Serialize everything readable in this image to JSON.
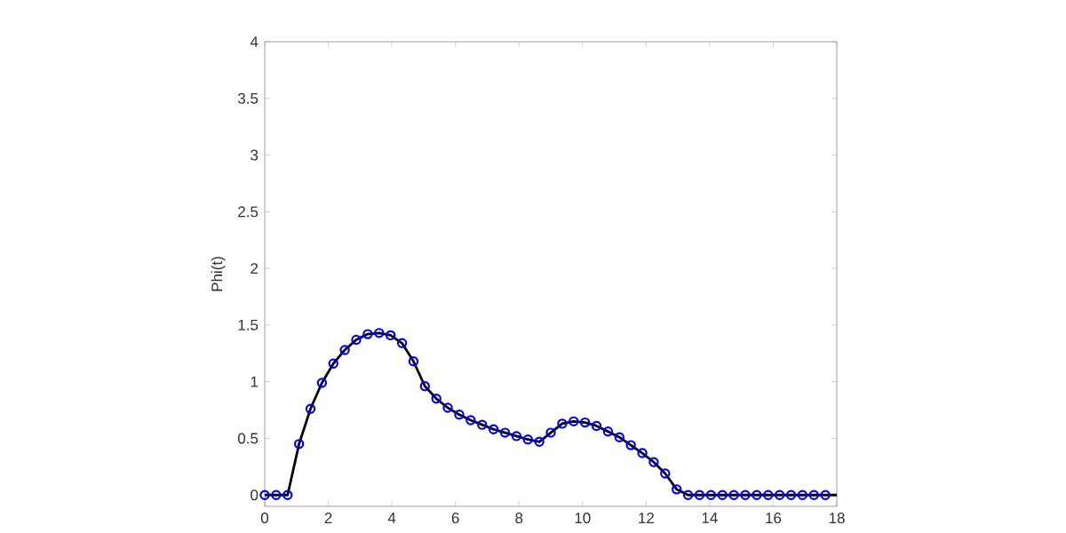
{
  "chart_data": {
    "type": "line",
    "ylabel": "Phi(t)",
    "xlim": [
      0,
      18
    ],
    "ylim": [
      -0.1,
      4
    ],
    "xticks": [
      0,
      2,
      4,
      6,
      8,
      10,
      12,
      14,
      16,
      18
    ],
    "yticks": [
      0,
      0.5,
      1,
      1.5,
      2,
      2.5,
      3,
      3.5,
      4
    ],
    "grid": false,
    "series": [
      {
        "color": "#000000",
        "marker": "none",
        "line_style": "solid",
        "x": [
          0,
          0.36,
          0.72,
          1.08,
          1.44,
          1.8,
          2.16,
          2.52,
          2.88,
          3.24,
          3.6,
          3.96,
          4.32,
          4.68,
          5.04,
          5.4,
          5.76,
          6.12,
          6.48,
          6.84,
          7.2,
          7.56,
          7.92,
          8.28,
          8.64,
          9.0,
          9.36,
          9.72,
          10.08,
          10.44,
          10.8,
          11.16,
          11.52,
          11.88,
          12.24,
          12.6,
          12.96,
          13.32,
          13.68,
          14.04,
          14.4,
          14.76,
          15.12,
          15.48,
          15.84,
          16.2,
          16.56,
          16.92,
          17.28,
          17.64,
          18
        ],
        "values": [
          0,
          0,
          0,
          0.45,
          0.76,
          0.99,
          1.16,
          1.28,
          1.37,
          1.42,
          1.43,
          1.41,
          1.34,
          1.18,
          0.96,
          0.85,
          0.77,
          0.71,
          0.66,
          0.62,
          0.58,
          0.55,
          0.52,
          0.49,
          0.47,
          0.55,
          0.63,
          0.65,
          0.64,
          0.61,
          0.56,
          0.51,
          0.44,
          0.37,
          0.29,
          0.19,
          0.05,
          0,
          0,
          0,
          0,
          0,
          0,
          0,
          0,
          0,
          0,
          0,
          0,
          0,
          0
        ]
      },
      {
        "type": "scatter",
        "color": "#0000ff",
        "marker": "circle",
        "x": [
          0,
          0.36,
          0.72,
          1.08,
          1.44,
          1.8,
          2.16,
          2.52,
          2.88,
          3.24,
          3.6,
          3.96,
          4.32,
          4.68,
          5.04,
          5.4,
          5.76,
          6.12,
          6.48,
          6.84,
          7.2,
          7.56,
          7.92,
          8.28,
          8.64,
          9.0,
          9.36,
          9.72,
          10.08,
          10.44,
          10.8,
          11.16,
          11.52,
          11.88,
          12.24,
          12.6,
          12.96,
          13.32,
          13.68,
          14.04,
          14.4,
          14.76,
          15.12,
          15.48,
          15.84,
          16.2,
          16.56,
          16.92,
          17.28,
          17.64
        ],
        "values": [
          0,
          0,
          0,
          0.45,
          0.76,
          0.99,
          1.16,
          1.28,
          1.37,
          1.42,
          1.43,
          1.41,
          1.34,
          1.18,
          0.96,
          0.85,
          0.77,
          0.71,
          0.66,
          0.62,
          0.58,
          0.55,
          0.52,
          0.49,
          0.47,
          0.55,
          0.63,
          0.65,
          0.64,
          0.61,
          0.56,
          0.51,
          0.44,
          0.37,
          0.29,
          0.19,
          0.05,
          0,
          0,
          0,
          0,
          0,
          0,
          0,
          0,
          0,
          0,
          0,
          0,
          0
        ]
      }
    ]
  }
}
